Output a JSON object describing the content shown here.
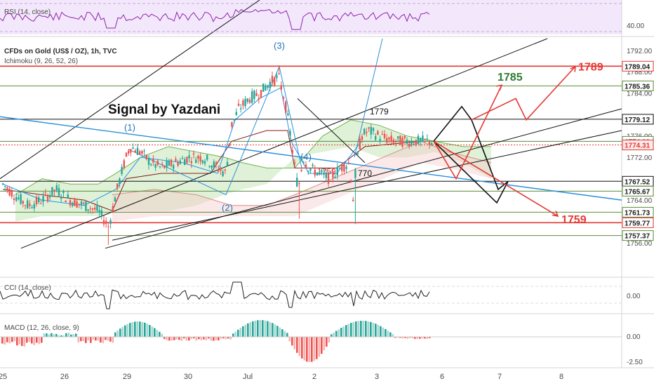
{
  "header": {
    "title": "CFDs on Gold (US$ / OZ), 1h, TVC",
    "ichimoku": "Ichimoku (9, 26, 52, 26)",
    "signal": "Signal by Yazdani"
  },
  "indicators": {
    "rsi": {
      "label": "RSI (14, close)",
      "tick": "40.00"
    },
    "cci": {
      "label": "CCI (14, close)",
      "tick": "0.00"
    },
    "macd": {
      "label": "MACD (12, 26, close, 9)",
      "ticks": [
        "0.00",
        "-2.50"
      ]
    }
  },
  "colors": {
    "bull": "#26a69a",
    "bear": "#ef5350",
    "red_line": "#e53935",
    "green_line": "#5b8c3a",
    "black_line": "#111111",
    "blue_line": "#2a8fd8",
    "rsi_line": "#8e24aa",
    "rsi_bg": "#f3e8fb",
    "cloud_green": "#b9e3a8",
    "cloud_red": "#f6c6c6",
    "target_red": "#e53935",
    "target_green": "#2e7d32"
  },
  "chart_data": {
    "type": "candlestick",
    "title": "CFDs on Gold (US$ / OZ), 1h, TVC",
    "x_labels": [
      "25",
      "26",
      "29",
      "30",
      "Jul",
      "2",
      "3",
      "6",
      "7",
      "8"
    ],
    "y_ticks": [
      "1792.00",
      "1788.00",
      "1784.00",
      "1776.00",
      "1772.00",
      "1764.00",
      "1760.00",
      "1756.00"
    ],
    "ylim": [
      1754.5,
      1793.5
    ],
    "price_tags": [
      {
        "value": "1789.04",
        "style": "red-outline"
      },
      {
        "value": "1785.36",
        "style": "green-outline"
      },
      {
        "value": "1779.12",
        "style": "black-outline"
      },
      {
        "value": "1774.99",
        "style": "green-outline"
      },
      {
        "value": "1774.31",
        "style": "red-fill"
      },
      {
        "value": "1767.52",
        "style": "black-outline"
      },
      {
        "value": "1765.67",
        "style": "green-outline"
      },
      {
        "value": "1761.73",
        "style": "green-outline"
      },
      {
        "value": "1759.77",
        "style": "red-outline"
      },
      {
        "value": "1757.37",
        "style": "green-outline"
      }
    ],
    "horizontal_levels": [
      {
        "value": 1789.04,
        "color": "red"
      },
      {
        "value": 1785.36,
        "color": "green"
      },
      {
        "value": 1779.12,
        "color": "black"
      },
      {
        "value": 1774.99,
        "color": "green"
      },
      {
        "value": 1767.52,
        "color": "black"
      },
      {
        "value": 1765.67,
        "color": "green"
      },
      {
        "value": 1761.73,
        "color": "green"
      },
      {
        "value": 1759.77,
        "color": "red"
      },
      {
        "value": 1757.37,
        "color": "green"
      }
    ],
    "wave_labels": [
      "(1)",
      "(2)",
      "(3)",
      "(4)"
    ],
    "annotations": [
      "1779",
      "1759",
      "770"
    ],
    "targets": [
      {
        "label": "1789",
        "color": "red"
      },
      {
        "label": "1785",
        "color": "green"
      },
      {
        "label": "1759",
        "color": "red"
      }
    ]
  }
}
